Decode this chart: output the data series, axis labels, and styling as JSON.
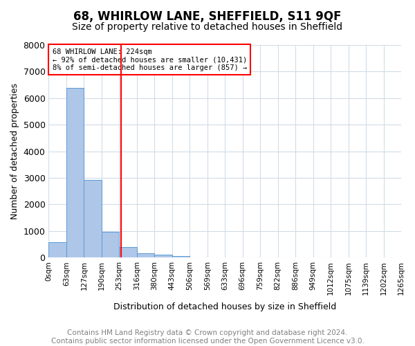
{
  "title": "68, WHIRLOW LANE, SHEFFIELD, S11 9QF",
  "subtitle": "Size of property relative to detached houses in Sheffield",
  "xlabel": "Distribution of detached houses by size in Sheffield",
  "ylabel": "Number of detached properties",
  "bin_labels": [
    "0sqm",
    "63sqm",
    "127sqm",
    "190sqm",
    "253sqm",
    "316sqm",
    "380sqm",
    "443sqm",
    "506sqm",
    "569sqm",
    "633sqm",
    "696sqm",
    "759sqm",
    "822sqm",
    "886sqm",
    "949sqm",
    "1012sqm",
    "1075sqm",
    "1139sqm",
    "1202sqm",
    "1265sqm"
  ],
  "bar_values": [
    570,
    6380,
    2920,
    980,
    390,
    165,
    105,
    55,
    0,
    0,
    0,
    0,
    0,
    0,
    0,
    0,
    0,
    0,
    0,
    0
  ],
  "bar_color": "#aec6e8",
  "bar_edge_color": "#5b9bd5",
  "property_line_x": 3.6,
  "property_line_color": "red",
  "annotation_text": "68 WHIRLOW LANE: 224sqm\n← 92% of detached houses are smaller (10,431)\n8% of semi-detached houses are larger (857) →",
  "annotation_box_color": "white",
  "annotation_box_edge": "red",
  "ylim": [
    0,
    8000
  ],
  "yticks": [
    0,
    1000,
    2000,
    3000,
    4000,
    5000,
    6000,
    7000,
    8000
  ],
  "footnote": "Contains HM Land Registry data © Crown copyright and database right 2024.\nContains public sector information licensed under the Open Government Licence v3.0.",
  "bg_color": "#ffffff",
  "grid_color": "#d0dce8",
  "title_fontsize": 12,
  "subtitle_fontsize": 10,
  "footnote_fontsize": 7.5
}
